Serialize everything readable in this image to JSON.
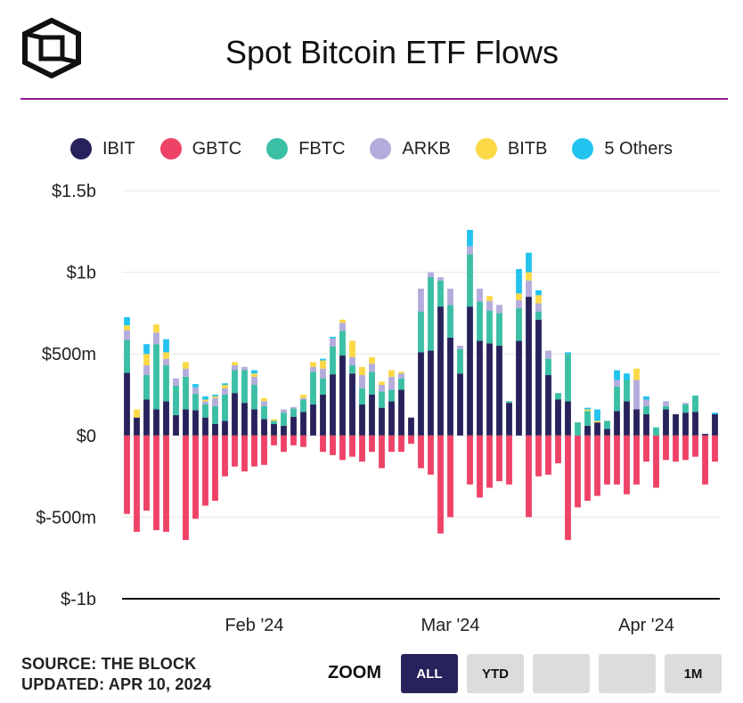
{
  "header": {
    "title": "Spot Bitcoin ETF Flows"
  },
  "legend": [
    {
      "name": "IBIT",
      "color": "#28225c"
    },
    {
      "name": "GBTC",
      "color": "#ee4266"
    },
    {
      "name": "FBTC",
      "color": "#3bbfa5"
    },
    {
      "name": "ARKB",
      "color": "#b4acdc"
    },
    {
      "name": "BITB",
      "color": "#fbd846"
    },
    {
      "name": "5 Others",
      "color": "#22c3ee"
    }
  ],
  "footer": {
    "source": "SOURCE: THE BLOCK",
    "updated": "UPDATED: APR 10, 2024"
  },
  "zoom": {
    "label": "ZOOM",
    "buttons": [
      {
        "label": "ALL",
        "active": true
      },
      {
        "label": "YTD",
        "active": false
      },
      {
        "label": "",
        "active": false
      },
      {
        "label": "",
        "active": false
      },
      {
        "label": "1M",
        "active": false
      }
    ]
  },
  "chart_data": {
    "type": "bar",
    "stacked": true,
    "title": "Spot Bitcoin ETF Flows",
    "xlabel": "",
    "ylabel": "",
    "ylim": [
      -1000,
      1500
    ],
    "y_unit": "millions USD",
    "yticks": [
      {
        "value": 1500,
        "label": "$1.5b"
      },
      {
        "value": 1000,
        "label": "$1b"
      },
      {
        "value": 500,
        "label": "$500m"
      },
      {
        "value": 0,
        "label": "$0"
      },
      {
        "value": -500,
        "label": "$-500m"
      },
      {
        "value": -1000,
        "label": "$-1b"
      }
    ],
    "xticks": [
      {
        "label": "Feb '24",
        "at_index": 13
      },
      {
        "label": "Mar '24",
        "at_index": 33
      },
      {
        "label": "Apr '24",
        "at_index": 53
      }
    ],
    "categories": [
      "2024-01-11",
      "2024-01-12",
      "2024-01-16",
      "2024-01-17",
      "2024-01-18",
      "2024-01-19",
      "2024-01-22",
      "2024-01-23",
      "2024-01-24",
      "2024-01-25",
      "2024-01-26",
      "2024-01-29",
      "2024-01-30",
      "2024-01-31",
      "2024-02-01",
      "2024-02-02",
      "2024-02-05",
      "2024-02-06",
      "2024-02-07",
      "2024-02-08",
      "2024-02-09",
      "2024-02-12",
      "2024-02-13",
      "2024-02-14",
      "2024-02-15",
      "2024-02-16",
      "2024-02-20",
      "2024-02-21",
      "2024-02-22",
      "2024-02-23",
      "2024-02-26",
      "2024-02-27",
      "2024-02-28",
      "2024-02-29",
      "2024-03-01",
      "2024-03-04",
      "2024-03-05",
      "2024-03-06",
      "2024-03-07",
      "2024-03-08",
      "2024-03-11",
      "2024-03-12",
      "2024-03-13",
      "2024-03-14",
      "2024-03-15",
      "2024-03-18",
      "2024-03-19",
      "2024-03-20",
      "2024-03-21",
      "2024-03-22",
      "2024-03-25",
      "2024-03-26",
      "2024-03-27",
      "2024-03-28",
      "2024-04-01",
      "2024-04-02",
      "2024-04-03",
      "2024-04-04",
      "2024-04-05",
      "2024-04-08",
      "2024-04-09"
    ],
    "series": [
      {
        "name": "IBIT",
        "values": [
          385,
          110,
          220,
          160,
          210,
          125,
          160,
          155,
          110,
          70,
          90,
          260,
          200,
          160,
          100,
          70,
          60,
          115,
          145,
          190,
          250,
          375,
          490,
          380,
          190,
          250,
          170,
          210,
          280,
          110,
          510,
          520,
          790,
          600,
          380,
          790,
          580,
          565,
          550,
          200,
          580,
          850,
          710,
          370,
          220,
          210,
          0,
          60,
          80,
          40,
          150,
          210,
          160,
          130,
          0,
          160,
          130,
          140,
          145,
          10,
          130
        ]
      },
      {
        "name": "GBTC",
        "values": [
          -480,
          -590,
          -460,
          -580,
          -590,
          0,
          -640,
          -510,
          -430,
          -400,
          -250,
          -190,
          -220,
          -190,
          -180,
          -60,
          -100,
          -60,
          -70,
          0,
          -100,
          -120,
          -150,
          -130,
          -160,
          -100,
          -200,
          -100,
          -100,
          -50,
          -200,
          -240,
          -600,
          -500,
          0,
          -300,
          -380,
          -320,
          -280,
          -300,
          0,
          -500,
          -250,
          -240,
          -170,
          -640,
          -440,
          -400,
          -370,
          -300,
          -300,
          -360,
          -300,
          -160,
          -320,
          -150,
          -160,
          -150,
          -130,
          -300,
          -160
        ]
      },
      {
        "name": "FBTC",
        "values": [
          200,
          0,
          150,
          400,
          220,
          180,
          200,
          100,
          80,
          110,
          160,
          140,
          200,
          150,
          80,
          20,
          80,
          50,
          75,
          200,
          100,
          170,
          150,
          50,
          100,
          140,
          100,
          70,
          70,
          0,
          250,
          450,
          160,
          200,
          150,
          320,
          240,
          200,
          200,
          10,
          200,
          0,
          50,
          100,
          40,
          290,
          80,
          90,
          0,
          50,
          150,
          130,
          0,
          50,
          50,
          20,
          0,
          50,
          100,
          0,
          0
        ]
      },
      {
        "name": "ARKB",
        "values": [
          60,
          0,
          60,
          70,
          40,
          45,
          50,
          40,
          20,
          50,
          40,
          30,
          20,
          50,
          30,
          0,
          20,
          10,
          10,
          30,
          60,
          50,
          50,
          50,
          80,
          50,
          40,
          80,
          30,
          0,
          140,
          30,
          20,
          100,
          20,
          50,
          80,
          60,
          50,
          0,
          50,
          100,
          50,
          50,
          0,
          0,
          0,
          0,
          0,
          0,
          40,
          0,
          180,
          40,
          0,
          30,
          0,
          10,
          0,
          0,
          0
        ]
      },
      {
        "name": "BITB",
        "values": [
          30,
          50,
          70,
          50,
          40,
          0,
          40,
          0,
          10,
          10,
          20,
          20,
          0,
          20,
          20,
          10,
          0,
          0,
          20,
          30,
          50,
          0,
          20,
          100,
          50,
          40,
          20,
          40,
          10,
          0,
          0,
          0,
          0,
          0,
          0,
          0,
          0,
          30,
          0,
          0,
          40,
          50,
          50,
          0,
          0,
          0,
          0,
          10,
          10,
          0,
          0,
          0,
          70,
          0,
          0,
          0,
          0,
          0,
          0,
          0,
          0
        ]
      },
      {
        "name": "5 Others",
        "values": [
          50,
          0,
          60,
          0,
          80,
          0,
          0,
          20,
          20,
          10,
          10,
          0,
          0,
          20,
          0,
          0,
          0,
          0,
          0,
          0,
          10,
          10,
          0,
          0,
          0,
          0,
          0,
          0,
          0,
          0,
          0,
          0,
          0,
          0,
          0,
          100,
          0,
          0,
          0,
          0,
          150,
          120,
          30,
          0,
          0,
          10,
          0,
          10,
          70,
          0,
          60,
          40,
          0,
          20,
          0,
          0,
          0,
          0,
          0,
          0,
          10
        ]
      }
    ]
  }
}
